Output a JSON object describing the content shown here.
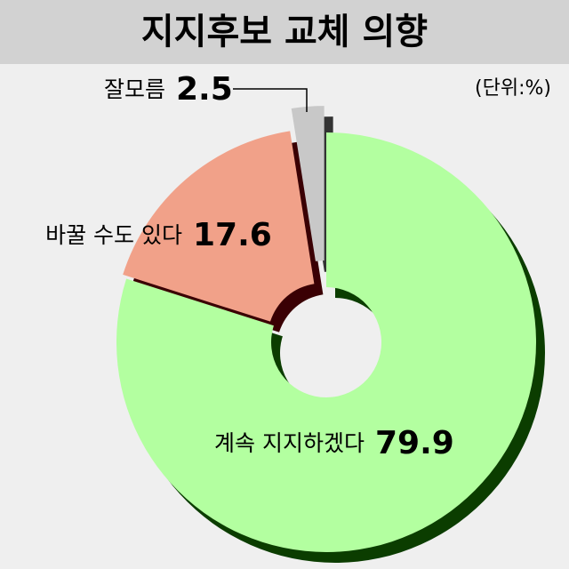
{
  "chart_data": {
    "type": "pie",
    "title": "지지후보 교체 의향",
    "unit_note": "(단위:%)",
    "categories": [
      "계속 지지하겠다",
      "바꿀 수도 있다",
      "잘모름"
    ],
    "values": [
      79.9,
      17.6,
      2.5
    ],
    "colors": [
      "#b3ffa0",
      "#f1a189",
      "#c8c8c8"
    ],
    "donut": true
  }
}
